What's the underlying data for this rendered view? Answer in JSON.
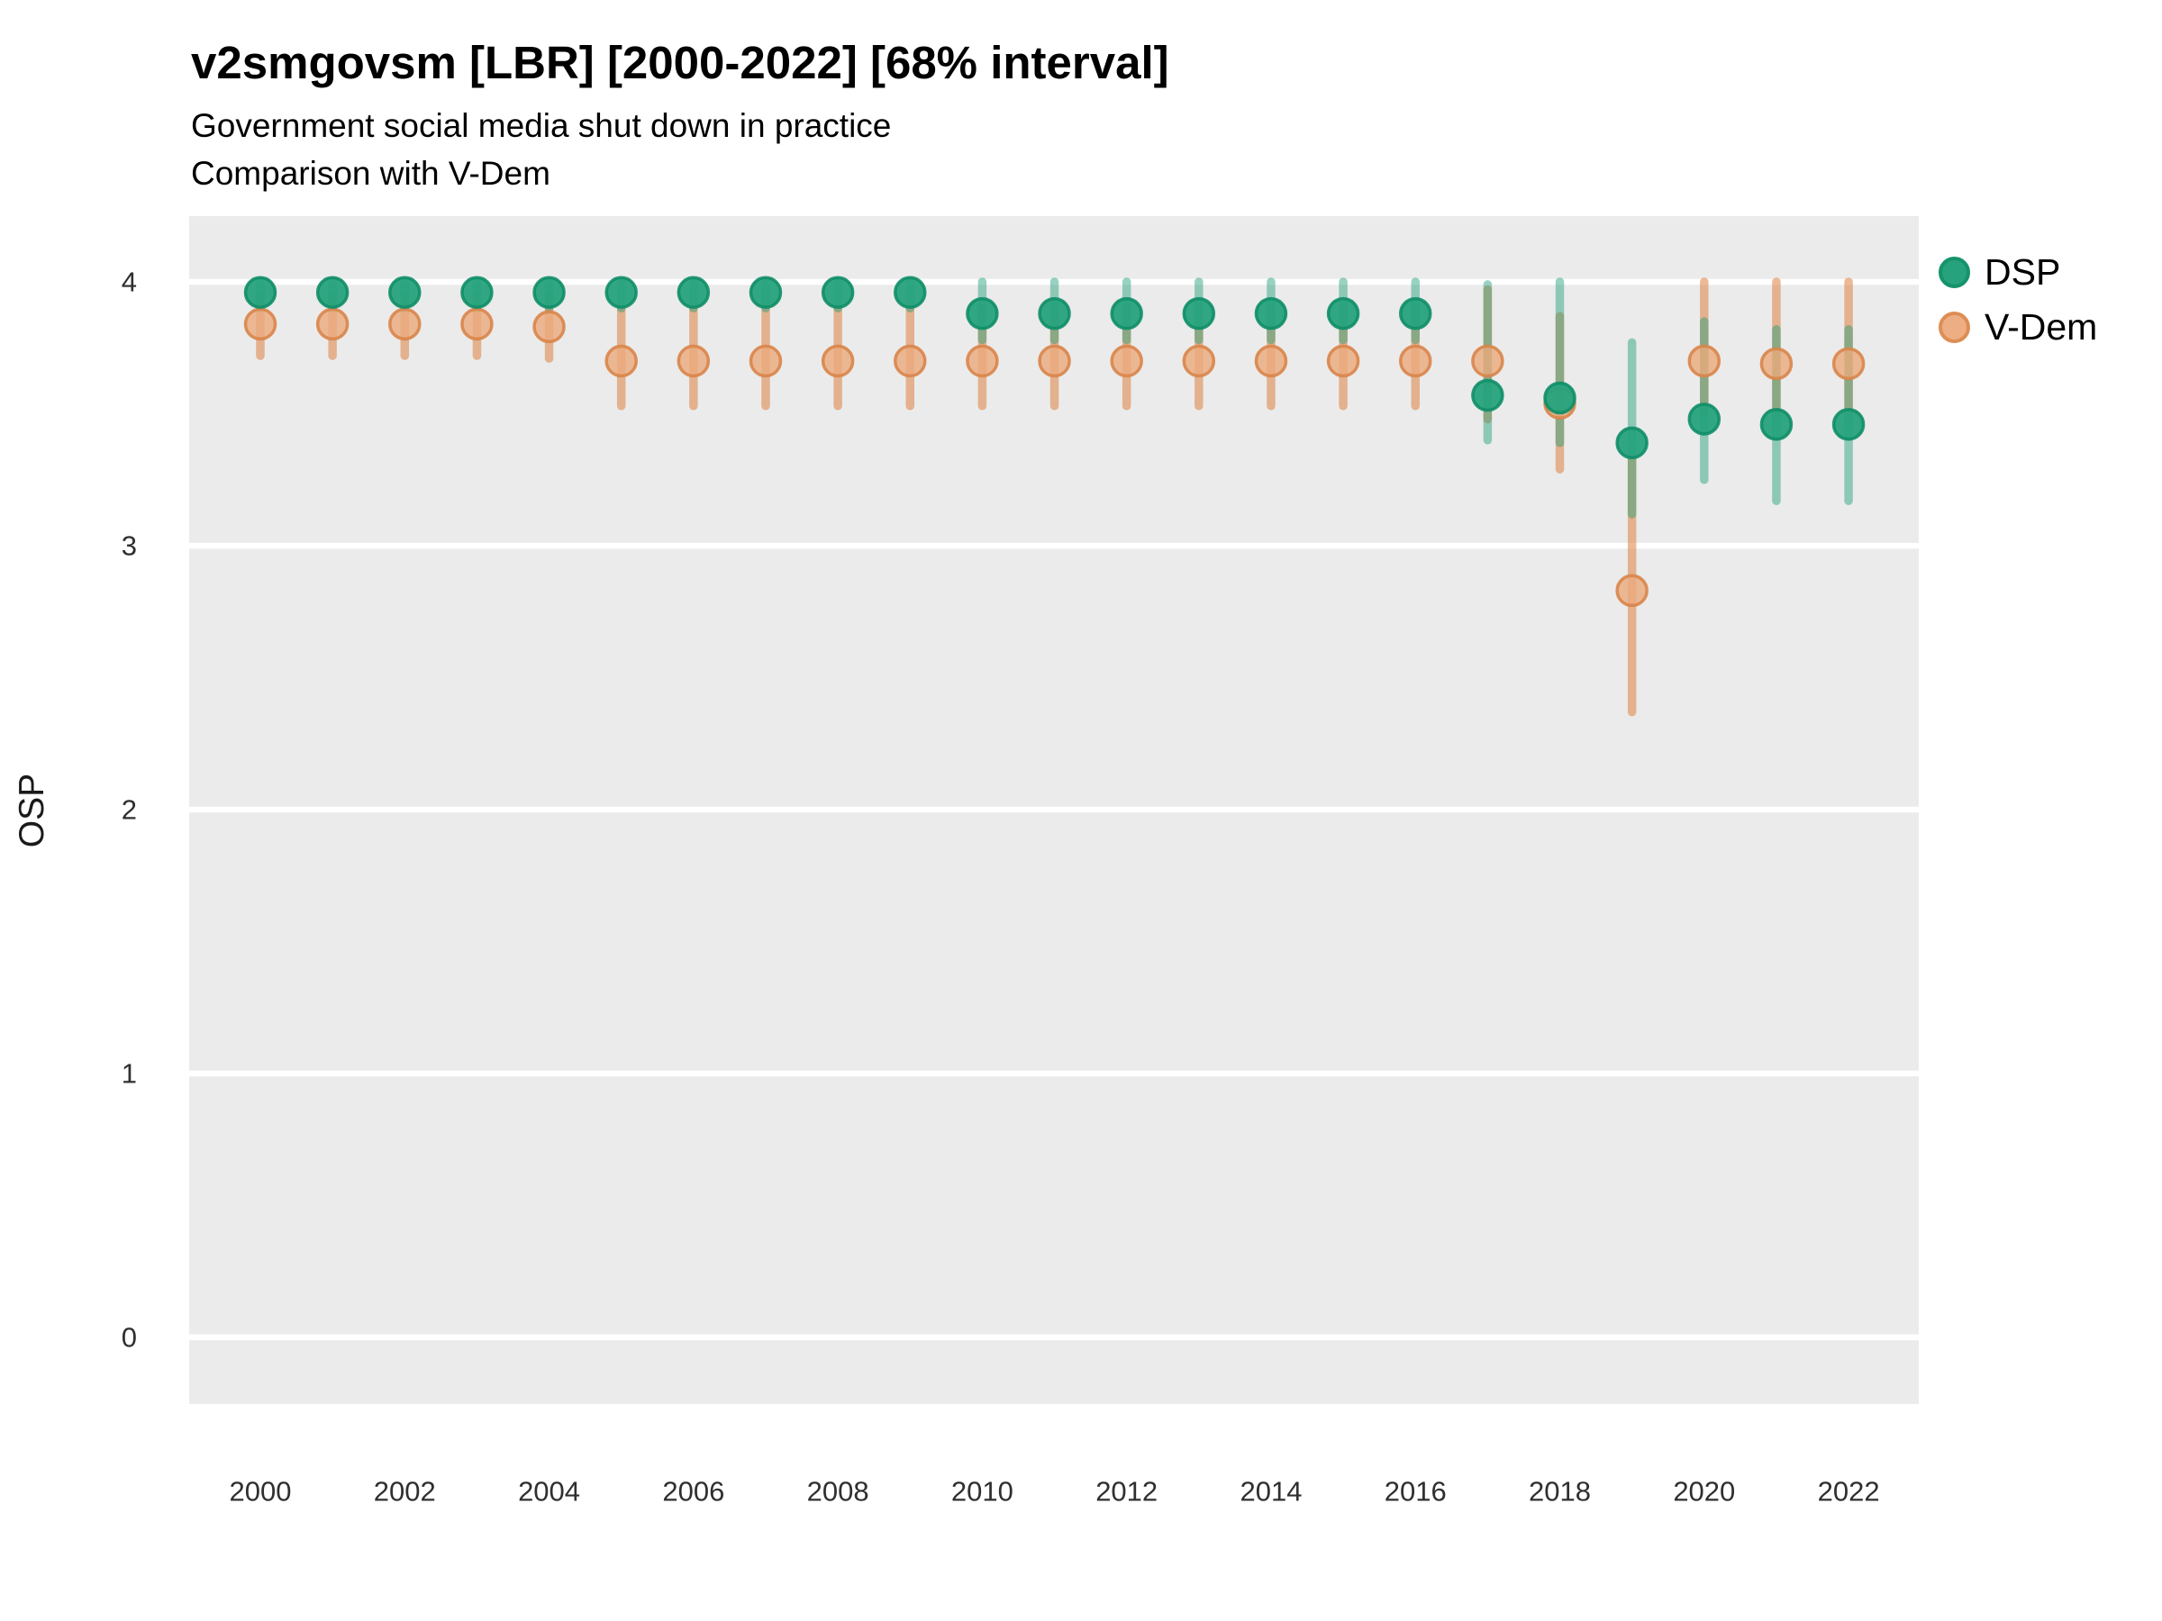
{
  "header": {
    "title": "v2smgovsm [LBR] [2000-2022] [68% interval]",
    "subtitle1": "Government social media shut down in practice",
    "subtitle2": "Comparison with V-Dem"
  },
  "legend": {
    "items": [
      {
        "label": "DSP",
        "fill": "#26a27c",
        "stroke": "#17936b"
      },
      {
        "label": "V-Dem",
        "fill": "#eeae83",
        "stroke": "#dd8e55"
      }
    ]
  },
  "axes": {
    "y_label": "OSP",
    "y_ticks": [
      4,
      3,
      2,
      1,
      0
    ],
    "x_ticks": [
      2000,
      2002,
      2004,
      2006,
      2008,
      2010,
      2012,
      2014,
      2016,
      2018,
      2020,
      2022
    ]
  },
  "colors": {
    "panel_bg": "#ebebeb",
    "gridline": "#ffffff",
    "dsp_point_fill": "#26a27c",
    "dsp_point_stroke": "#0f8e67",
    "dsp_bar": "#1b9e77",
    "vdem_point_fill": "#ebaa7d",
    "vdem_point_stroke": "#d9854a",
    "vdem_bar": "#dd8240"
  },
  "chart_data": {
    "type": "pointrange",
    "title": "v2smgovsm [LBR] [2000-2022] [68% interval]",
    "subtitle": "Government social media shut down in practice — Comparison with V-Dem",
    "xlabel": "",
    "ylabel": "OSP",
    "ylim": [
      -0.35,
      4.25
    ],
    "xlim": [
      2000,
      2022
    ],
    "grid": "white major gridlines on gray panel",
    "legend_position": "right",
    "interval": "68%",
    "x": [
      2000,
      2001,
      2002,
      2003,
      2004,
      2005,
      2006,
      2007,
      2008,
      2009,
      2010,
      2011,
      2012,
      2013,
      2014,
      2015,
      2016,
      2017,
      2018,
      2019,
      2020,
      2021,
      2022
    ],
    "series": [
      {
        "name": "DSP",
        "values": [
          3.96,
          3.96,
          3.96,
          3.96,
          3.96,
          3.96,
          3.96,
          3.96,
          3.96,
          3.96,
          3.88,
          3.88,
          3.88,
          3.88,
          3.88,
          3.88,
          3.88,
          3.57,
          3.56,
          3.39,
          3.48,
          3.46,
          3.46
        ],
        "lo": [
          3.9,
          3.9,
          3.9,
          3.9,
          3.9,
          3.9,
          3.9,
          3.9,
          3.9,
          3.9,
          3.78,
          3.78,
          3.78,
          3.78,
          3.78,
          3.78,
          3.78,
          3.4,
          3.39,
          3.12,
          3.25,
          3.17,
          3.17
        ],
        "hi": [
          4.0,
          4.0,
          4.0,
          4.0,
          4.0,
          4.0,
          4.0,
          4.0,
          4.0,
          4.0,
          4.0,
          4.0,
          4.0,
          4.0,
          4.0,
          4.0,
          4.0,
          3.99,
          4.0,
          3.77,
          3.85,
          3.82,
          3.82
        ]
      },
      {
        "name": "V-Dem",
        "values": [
          3.84,
          3.84,
          3.84,
          3.84,
          3.83,
          3.7,
          3.7,
          3.7,
          3.7,
          3.7,
          3.7,
          3.7,
          3.7,
          3.7,
          3.7,
          3.7,
          3.7,
          3.7,
          3.54,
          2.83,
          3.7,
          3.69,
          3.69
        ],
        "lo": [
          3.72,
          3.72,
          3.72,
          3.72,
          3.71,
          3.53,
          3.53,
          3.53,
          3.53,
          3.53,
          3.53,
          3.53,
          3.53,
          3.53,
          3.53,
          3.53,
          3.53,
          3.48,
          3.29,
          2.37,
          3.5,
          3.49,
          3.48
        ],
        "hi": [
          3.95,
          3.95,
          3.95,
          3.95,
          3.95,
          3.9,
          3.9,
          3.9,
          3.9,
          3.9,
          3.9,
          3.9,
          3.9,
          3.9,
          3.9,
          3.9,
          3.9,
          3.97,
          3.87,
          3.33,
          4.0,
          4.0,
          4.0
        ]
      }
    ]
  }
}
